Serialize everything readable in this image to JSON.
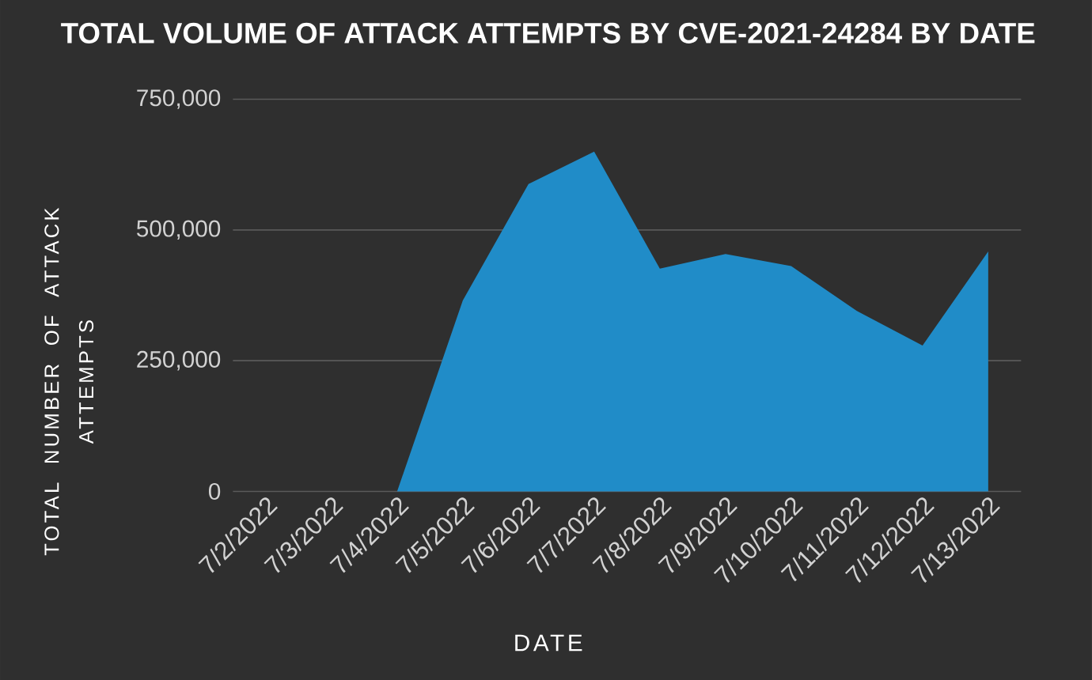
{
  "chart_data": {
    "type": "area",
    "title": "TOTAL VOLUME OF ATTACK ATTEMPTS BY CVE-2021-24284 BY DATE",
    "xlabel": "DATE",
    "ylabel": "TOTAL NUMBER OF ATTACK ATTEMPTS",
    "categories": [
      "7/2/2022",
      "7/3/2022",
      "7/4/2022",
      "7/5/2022",
      "7/6/2022",
      "7/7/2022",
      "7/8/2022",
      "7/9/2022",
      "7/10/2022",
      "7/11/2022",
      "7/12/2022",
      "7/13/2022"
    ],
    "values": [
      0,
      0,
      0,
      365000,
      588000,
      650000,
      426000,
      454000,
      431000,
      345000,
      279000,
      459000
    ],
    "color": "#208cc8",
    "ylim": [
      0,
      750000
    ],
    "yticks": [
      0,
      {
        "value": 250000,
        "label": "250,000"
      },
      {
        "value": 500000,
        "label": "500,000"
      },
      {
        "value": 750000,
        "label": "750,000"
      }
    ],
    "grid": "y"
  }
}
